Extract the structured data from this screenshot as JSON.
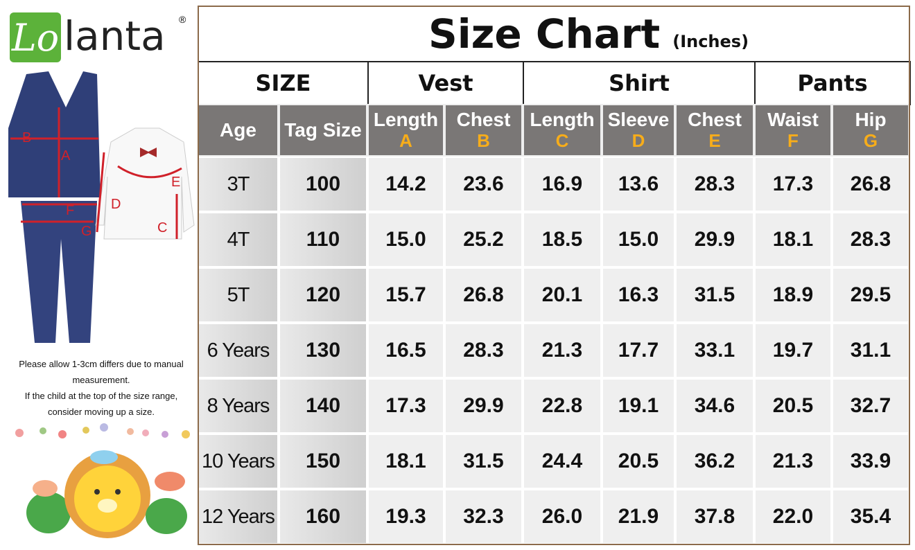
{
  "logo": {
    "mark": "Lo",
    "text": "lanta",
    "registered": "®"
  },
  "diagram_labels": [
    "A",
    "B",
    "C",
    "D",
    "E",
    "F",
    "G"
  ],
  "note": [
    "Please allow 1-3cm differs due to manual",
    "measurement.",
    "If the child at the top of the size range,",
    "consider moving up a size."
  ],
  "table": {
    "title": "Size Chart",
    "unit": "(Inches)",
    "groups": [
      "SIZE",
      "Vest",
      "Shirt",
      "Pants"
    ],
    "columns": [
      {
        "name": "Age"
      },
      {
        "name": "Tag Size"
      },
      {
        "name": "Length",
        "letter": "A"
      },
      {
        "name": "Chest",
        "letter": "B"
      },
      {
        "name": "Length",
        "letter": "C"
      },
      {
        "name": "Sleeve",
        "letter": "D"
      },
      {
        "name": "Chest",
        "letter": "E"
      },
      {
        "name": "Waist",
        "letter": "F"
      },
      {
        "name": "Hip",
        "letter": "G"
      }
    ],
    "rows": [
      [
        "3T",
        "100",
        "14.2",
        "23.6",
        "16.9",
        "13.6",
        "28.3",
        "17.3",
        "26.8"
      ],
      [
        "4T",
        "110",
        "15.0",
        "25.2",
        "18.5",
        "15.0",
        "29.9",
        "18.1",
        "28.3"
      ],
      [
        "5T",
        "120",
        "15.7",
        "26.8",
        "20.1",
        "16.3",
        "31.5",
        "18.9",
        "29.5"
      ],
      [
        "6 Years",
        "130",
        "16.5",
        "28.3",
        "21.3",
        "17.7",
        "33.1",
        "19.7",
        "31.1"
      ],
      [
        "8 Years",
        "140",
        "17.3",
        "29.9",
        "22.8",
        "19.1",
        "34.6",
        "20.5",
        "32.7"
      ],
      [
        "10 Years",
        "150",
        "18.1",
        "31.5",
        "24.4",
        "20.5",
        "36.2",
        "21.3",
        "33.9"
      ],
      [
        "12 Years",
        "160",
        "19.3",
        "32.3",
        "26.0",
        "21.9",
        "37.8",
        "22.0",
        "35.4"
      ]
    ]
  }
}
